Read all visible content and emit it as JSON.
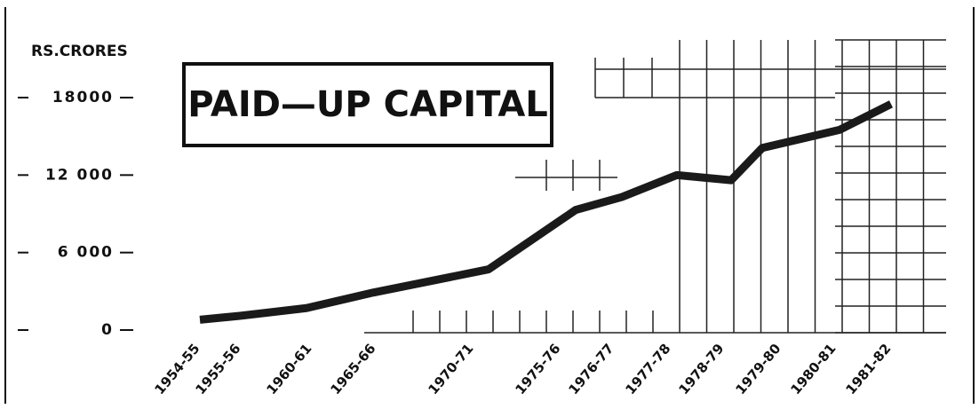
{
  "chart_data": {
    "type": "line",
    "title": "PAID—UP CAPITAL",
    "y_label": "RS.CRORES",
    "categories": [
      "1954-55",
      "1955-56",
      "1960-61",
      "1965-66",
      "1970-71",
      "1975-76",
      "1976-77",
      "1977-78",
      "1978-79",
      "1979-80",
      "1980-81",
      "1981-82"
    ],
    "series": [
      {
        "name": "Paid-up capital",
        "color": "#1a1a1a",
        "values": [
          800,
          1100,
          1700,
          2900,
          4700,
          9300,
          10300,
          12000,
          11600,
          14100,
          15500,
          17500
        ]
      }
    ],
    "ylim": [
      0,
      18000
    ],
    "yticks": [
      0,
      {
        "value": 6000,
        "label": "6 000"
      },
      {
        "value": 12000,
        "label": "12 000"
      },
      18000
    ]
  }
}
